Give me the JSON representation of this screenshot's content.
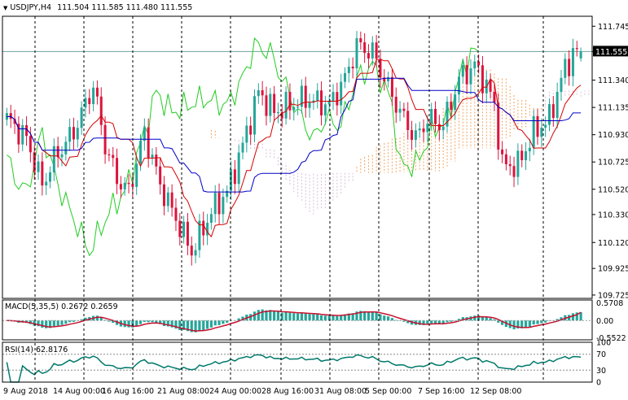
{
  "colors": {
    "bull": "#26a69a",
    "bear": "#dc143c",
    "tenkan": "#d40000",
    "kijun": "#0000c8",
    "chikou": "#22cc22",
    "cloud_a": "#f4a460",
    "cloud_b": "#d8bfd8",
    "macd": "#26a69a",
    "signal": "#c8102e",
    "rsi": "#00796b",
    "grid": "#000000",
    "price_line": "#6fa39a"
  },
  "main": {
    "symbol_label": "USDJPY,H4",
    "ohlc_label": "111.504 111.585 111.480 111.555",
    "current_price": "111.555"
  },
  "macd": {
    "label": "MACD(5,35,5) 0.2672 0.2659",
    "ticks": [
      "0.5708",
      "0.00",
      "-0.5522"
    ]
  },
  "rsi": {
    "label": "RSI(14) 62.8176",
    "ticks": [
      "100",
      "70",
      "30",
      "0"
    ]
  },
  "chart_data": [
    {
      "type": "candlestick",
      "title": "USDJPY,H4",
      "ohlc_header": {
        "open": 111.504,
        "high": 111.585,
        "low": 111.48,
        "close": 111.555
      },
      "x_tick_labels": [
        "9 Aug 2018",
        "14 Aug 00:00",
        "16 Aug 16:00",
        "21 Aug 08:00",
        "24 Aug 00:00",
        "28 Aug 16:00",
        "31 Aug 08:00",
        "5 Sep 00:00",
        "7 Sep 16:00",
        "12 Sep 08:00"
      ],
      "y_tick_labels": [
        "111.745",
        "111.555",
        "111.340",
        "111.135",
        "110.930",
        "110.725",
        "110.520",
        "110.330",
        "110.120",
        "109.925",
        "109.725"
      ],
      "ylim": [
        109.7,
        111.82
      ],
      "grid": "vertical dashed",
      "indicators": [
        "Ichimoku cloud",
        "Tenkan-sen",
        "Kijun-sen",
        "Chikou span"
      ],
      "close_anchors": [
        [
          0,
          111.05
        ],
        [
          5,
          110.9
        ],
        [
          9,
          110.55
        ],
        [
          12,
          110.75
        ],
        [
          17,
          110.95
        ],
        [
          22,
          111.3
        ],
        [
          25,
          110.85
        ],
        [
          28,
          110.6
        ],
        [
          31,
          110.5
        ],
        [
          35,
          110.95
        ],
        [
          39,
          110.55
        ],
        [
          43,
          110.3
        ],
        [
          47,
          110.05
        ],
        [
          52,
          110.35
        ],
        [
          56,
          110.5
        ],
        [
          60,
          110.85
        ],
        [
          64,
          111.25
        ],
        [
          68,
          111.1
        ],
        [
          72,
          111.15
        ],
        [
          76,
          111.2
        ],
        [
          82,
          111.15
        ],
        [
          86,
          111.35
        ],
        [
          89,
          111.6
        ],
        [
          93,
          111.55
        ],
        [
          96,
          111.35
        ],
        [
          100,
          111.1
        ],
        [
          104,
          110.9
        ],
        [
          107,
          111.05
        ],
        [
          111,
          111.0
        ],
        [
          115,
          111.35
        ],
        [
          119,
          111.45
        ],
        [
          122,
          111.3
        ],
        [
          124,
          111.15
        ],
        [
          126,
          110.7
        ],
        [
          130,
          110.7
        ],
        [
          134,
          110.95
        ],
        [
          138,
          111.05
        ],
        [
          141,
          111.35
        ],
        [
          144,
          111.55
        ],
        [
          146,
          111.56
        ]
      ]
    },
    {
      "type": "bar",
      "title": "MACD(5,35,5)",
      "series": [
        {
          "name": "MACD",
          "last": 0.2672
        },
        {
          "name": "Signal",
          "last": 0.2659
        }
      ],
      "ylim": [
        -0.62,
        0.66
      ],
      "y_tick_labels": [
        "0.5708",
        "0.00",
        "-0.5522"
      ]
    },
    {
      "type": "line",
      "title": "RSI(14)",
      "last": 62.8176,
      "ylim": [
        0,
        100
      ],
      "levels": [
        70,
        30
      ],
      "y_tick_labels": [
        "100",
        "70",
        "30",
        "0"
      ]
    }
  ]
}
